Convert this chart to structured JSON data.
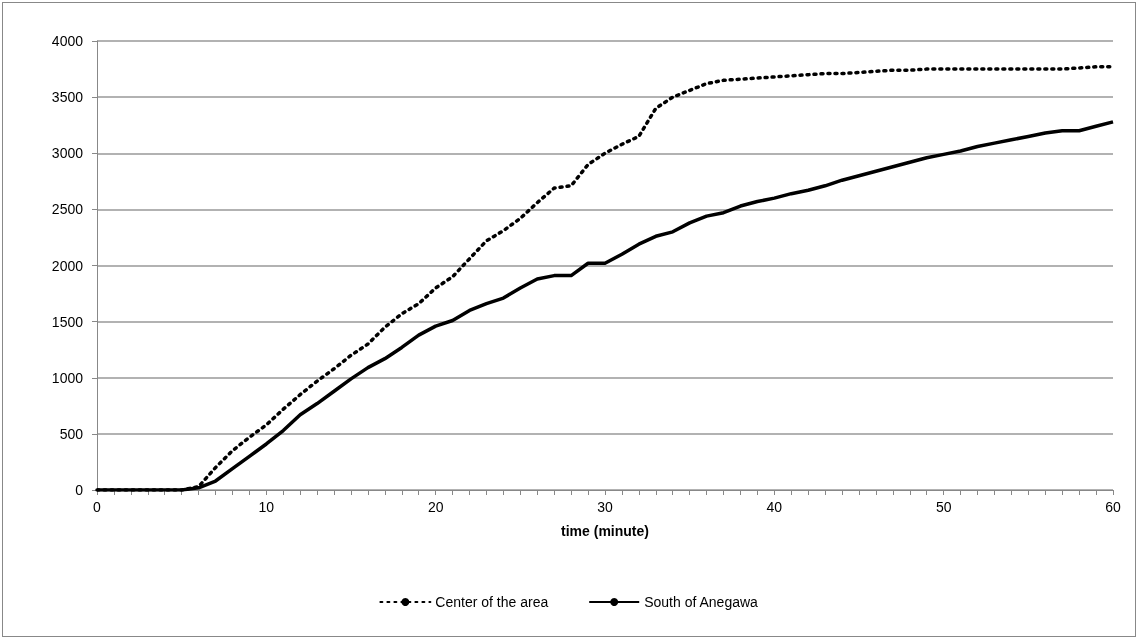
{
  "chart_data": {
    "type": "line",
    "xlabel": "time (minute)",
    "x": [
      0,
      1,
      2,
      3,
      4,
      5,
      6,
      7,
      8,
      9,
      10,
      11,
      12,
      13,
      14,
      15,
      16,
      17,
      18,
      19,
      20,
      21,
      22,
      23,
      24,
      25,
      26,
      27,
      28,
      29,
      30,
      31,
      32,
      33,
      34,
      35,
      36,
      37,
      38,
      39,
      40,
      41,
      42,
      43,
      44,
      45,
      46,
      47,
      48,
      49,
      50,
      51,
      52,
      53,
      54,
      55,
      56,
      57,
      58,
      59,
      60
    ],
    "series": [
      {
        "name": "Center of the area",
        "color": "#000000",
        "line_style": "dotted",
        "values": [
          0,
          0,
          0,
          0,
          0,
          0,
          30,
          200,
          350,
          470,
          580,
          720,
          850,
          970,
          1080,
          1200,
          1300,
          1450,
          1570,
          1660,
          1800,
          1900,
          2060,
          2220,
          2310,
          2420,
          2560,
          2690,
          2710,
          2900,
          3000,
          3080,
          3150,
          3400,
          3500,
          3560,
          3620,
          3650,
          3660,
          3670,
          3680,
          3690,
          3700,
          3710,
          3710,
          3720,
          3730,
          3740,
          3740,
          3750,
          3750,
          3750,
          3750,
          3750,
          3750,
          3750,
          3750,
          3750,
          3760,
          3770,
          3770
        ]
      },
      {
        "name": "South of Anegawa",
        "color": "#000000",
        "line_style": "solid",
        "values": [
          0,
          0,
          0,
          0,
          0,
          0,
          20,
          80,
          190,
          300,
          410,
          530,
          670,
          770,
          880,
          990,
          1090,
          1170,
          1270,
          1380,
          1460,
          1510,
          1600,
          1660,
          1710,
          1800,
          1880,
          1910,
          1910,
          2020,
          2020,
          2100,
          2190,
          2260,
          2300,
          2380,
          2440,
          2470,
          2530,
          2570,
          2600,
          2640,
          2670,
          2710,
          2760,
          2800,
          2840,
          2880,
          2920,
          2960,
          2990,
          3020,
          3060,
          3090,
          3120,
          3150,
          3180,
          3200,
          3200,
          3240,
          3280
        ]
      }
    ],
    "xlim": [
      0,
      60
    ],
    "xticks": [
      0,
      {
        "value": 1,
        "label": null
      },
      {
        "value": 2,
        "label": null
      },
      {
        "value": 3,
        "label": null
      },
      {
        "value": 4,
        "label": null
      },
      {
        "value": 5,
        "label": null
      },
      {
        "value": 6,
        "label": null
      },
      {
        "value": 7,
        "label": null
      },
      {
        "value": 8,
        "label": null
      },
      {
        "value": 9,
        "label": null
      },
      10,
      {
        "value": 11,
        "label": null
      },
      {
        "value": 12,
        "label": null
      },
      {
        "value": 13,
        "label": null
      },
      {
        "value": 14,
        "label": null
      },
      {
        "value": 15,
        "label": null
      },
      {
        "value": 16,
        "label": null
      },
      {
        "value": 17,
        "label": null
      },
      {
        "value": 18,
        "label": null
      },
      {
        "value": 19,
        "label": null
      },
      20,
      {
        "value": 21,
        "label": null
      },
      {
        "value": 22,
        "label": null
      },
      {
        "value": 23,
        "label": null
      },
      {
        "value": 24,
        "label": null
      },
      {
        "value": 25,
        "label": null
      },
      {
        "value": 26,
        "label": null
      },
      {
        "value": 27,
        "label": null
      },
      {
        "value": 28,
        "label": null
      },
      {
        "value": 29,
        "label": null
      },
      30,
      {
        "value": 31,
        "label": null
      },
      {
        "value": 32,
        "label": null
      },
      {
        "value": 33,
        "label": null
      },
      {
        "value": 34,
        "label": null
      },
      {
        "value": 35,
        "label": null
      },
      {
        "value": 36,
        "label": null
      },
      {
        "value": 37,
        "label": null
      },
      {
        "value": 38,
        "label": null
      },
      {
        "value": 39,
        "label": null
      },
      40,
      {
        "value": 41,
        "label": null
      },
      {
        "value": 42,
        "label": null
      },
      {
        "value": 43,
        "label": null
      },
      {
        "value": 44,
        "label": null
      },
      {
        "value": 45,
        "label": null
      },
      {
        "value": 46,
        "label": null
      },
      {
        "value": 47,
        "label": null
      },
      {
        "value": 48,
        "label": null
      },
      {
        "value": 49,
        "label": null
      },
      50,
      {
        "value": 51,
        "label": null
      },
      {
        "value": 52,
        "label": null
      },
      {
        "value": 53,
        "label": null
      },
      {
        "value": 54,
        "label": null
      },
      {
        "value": 55,
        "label": null
      },
      {
        "value": 56,
        "label": null
      },
      {
        "value": 57,
        "label": null
      },
      {
        "value": 58,
        "label": null
      },
      {
        "value": 59,
        "label": null
      },
      60
    ],
    "ylim": [
      0,
      4000
    ],
    "yticks": [
      0,
      500,
      1000,
      1500,
      2000,
      2500,
      3000,
      3500,
      4000
    ],
    "grid": "y",
    "legend": "bottom",
    "marker": "none"
  }
}
